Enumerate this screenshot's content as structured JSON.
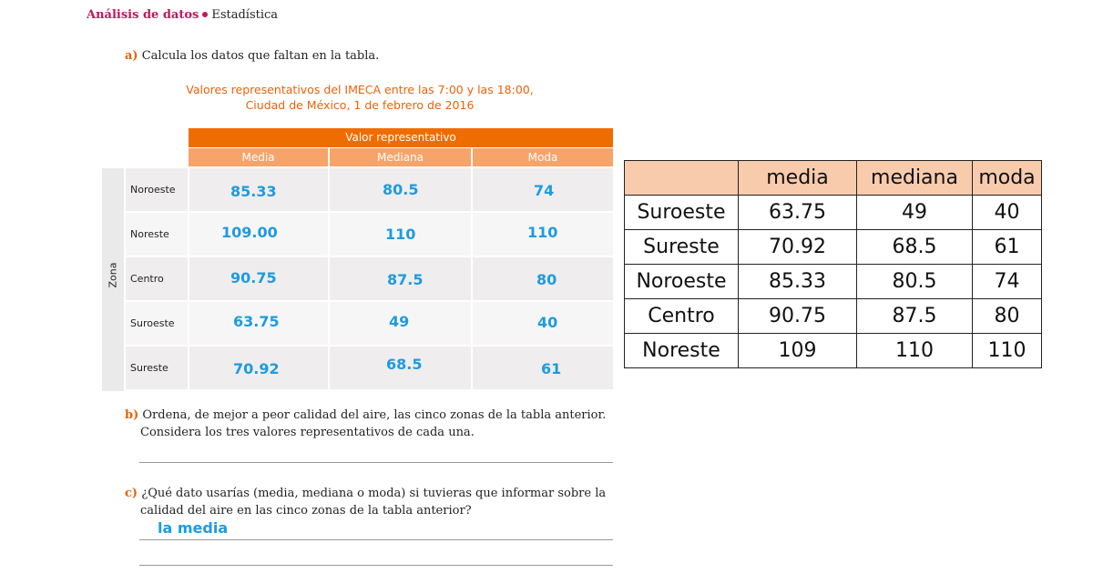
{
  "header": {
    "section": "Análisis de datos",
    "subsection": "Estadística"
  },
  "question_a": {
    "letter": "a)",
    "text": "Calcula los datos que faltan en la tabla."
  },
  "table_title": {
    "line1": "Valores representativos del IMECA entre las 7:00 y las 18:00,",
    "line2": "Ciudad de México, 1 de febrero de 2016"
  },
  "book_table": {
    "group_header": "Valor representativo",
    "columns": [
      "Media",
      "Mediana",
      "Moda"
    ],
    "row_group_label": "Zona",
    "rows": [
      {
        "zone": "Noroeste",
        "media": "85.33",
        "mediana": "80.5",
        "moda": "74"
      },
      {
        "zone": "Noreste",
        "media": "109.00",
        "mediana": "110",
        "moda": "110"
      },
      {
        "zone": "Centro",
        "media": "90.75",
        "mediana": "87.5",
        "moda": "80"
      },
      {
        "zone": "Suroeste",
        "media": "63.75",
        "mediana": "49",
        "moda": "40"
      },
      {
        "zone": "Sureste",
        "media": "70.92",
        "mediana": "68.5",
        "moda": "61"
      }
    ]
  },
  "question_b": {
    "letter": "b)",
    "line1": "Ordena, de mejor a peor calidad del aire, las cinco zonas de la tabla anterior.",
    "line2": "Considera los tres valores representativos de cada una."
  },
  "question_c": {
    "letter": "c)",
    "line1": "¿Qué dato usarías (media, mediana o moda) si tuvieras que informar sobre la",
    "line2": "calidad del aire en las cinco zonas de la tabla anterior?",
    "answer": "la media"
  },
  "summary_table": {
    "headers": [
      "",
      "media",
      "mediana",
      "moda"
    ],
    "rows": [
      [
        "Suroeste",
        "63.75",
        "49",
        "40"
      ],
      [
        "Sureste",
        "70.92",
        "68.5",
        "61"
      ],
      [
        "Noroeste",
        "85.33",
        "80.5",
        "74"
      ],
      [
        "Centro",
        "90.75",
        "87.5",
        "80"
      ],
      [
        "Noreste",
        "109",
        "110",
        "110"
      ]
    ]
  },
  "colors": {
    "section_magenta": "#c2185b",
    "orange_header": "#ef6c00",
    "light_orange": "#f6a46a",
    "handwritten_blue": "#1e9be0",
    "summary_header_peach": "#f8cbad"
  }
}
